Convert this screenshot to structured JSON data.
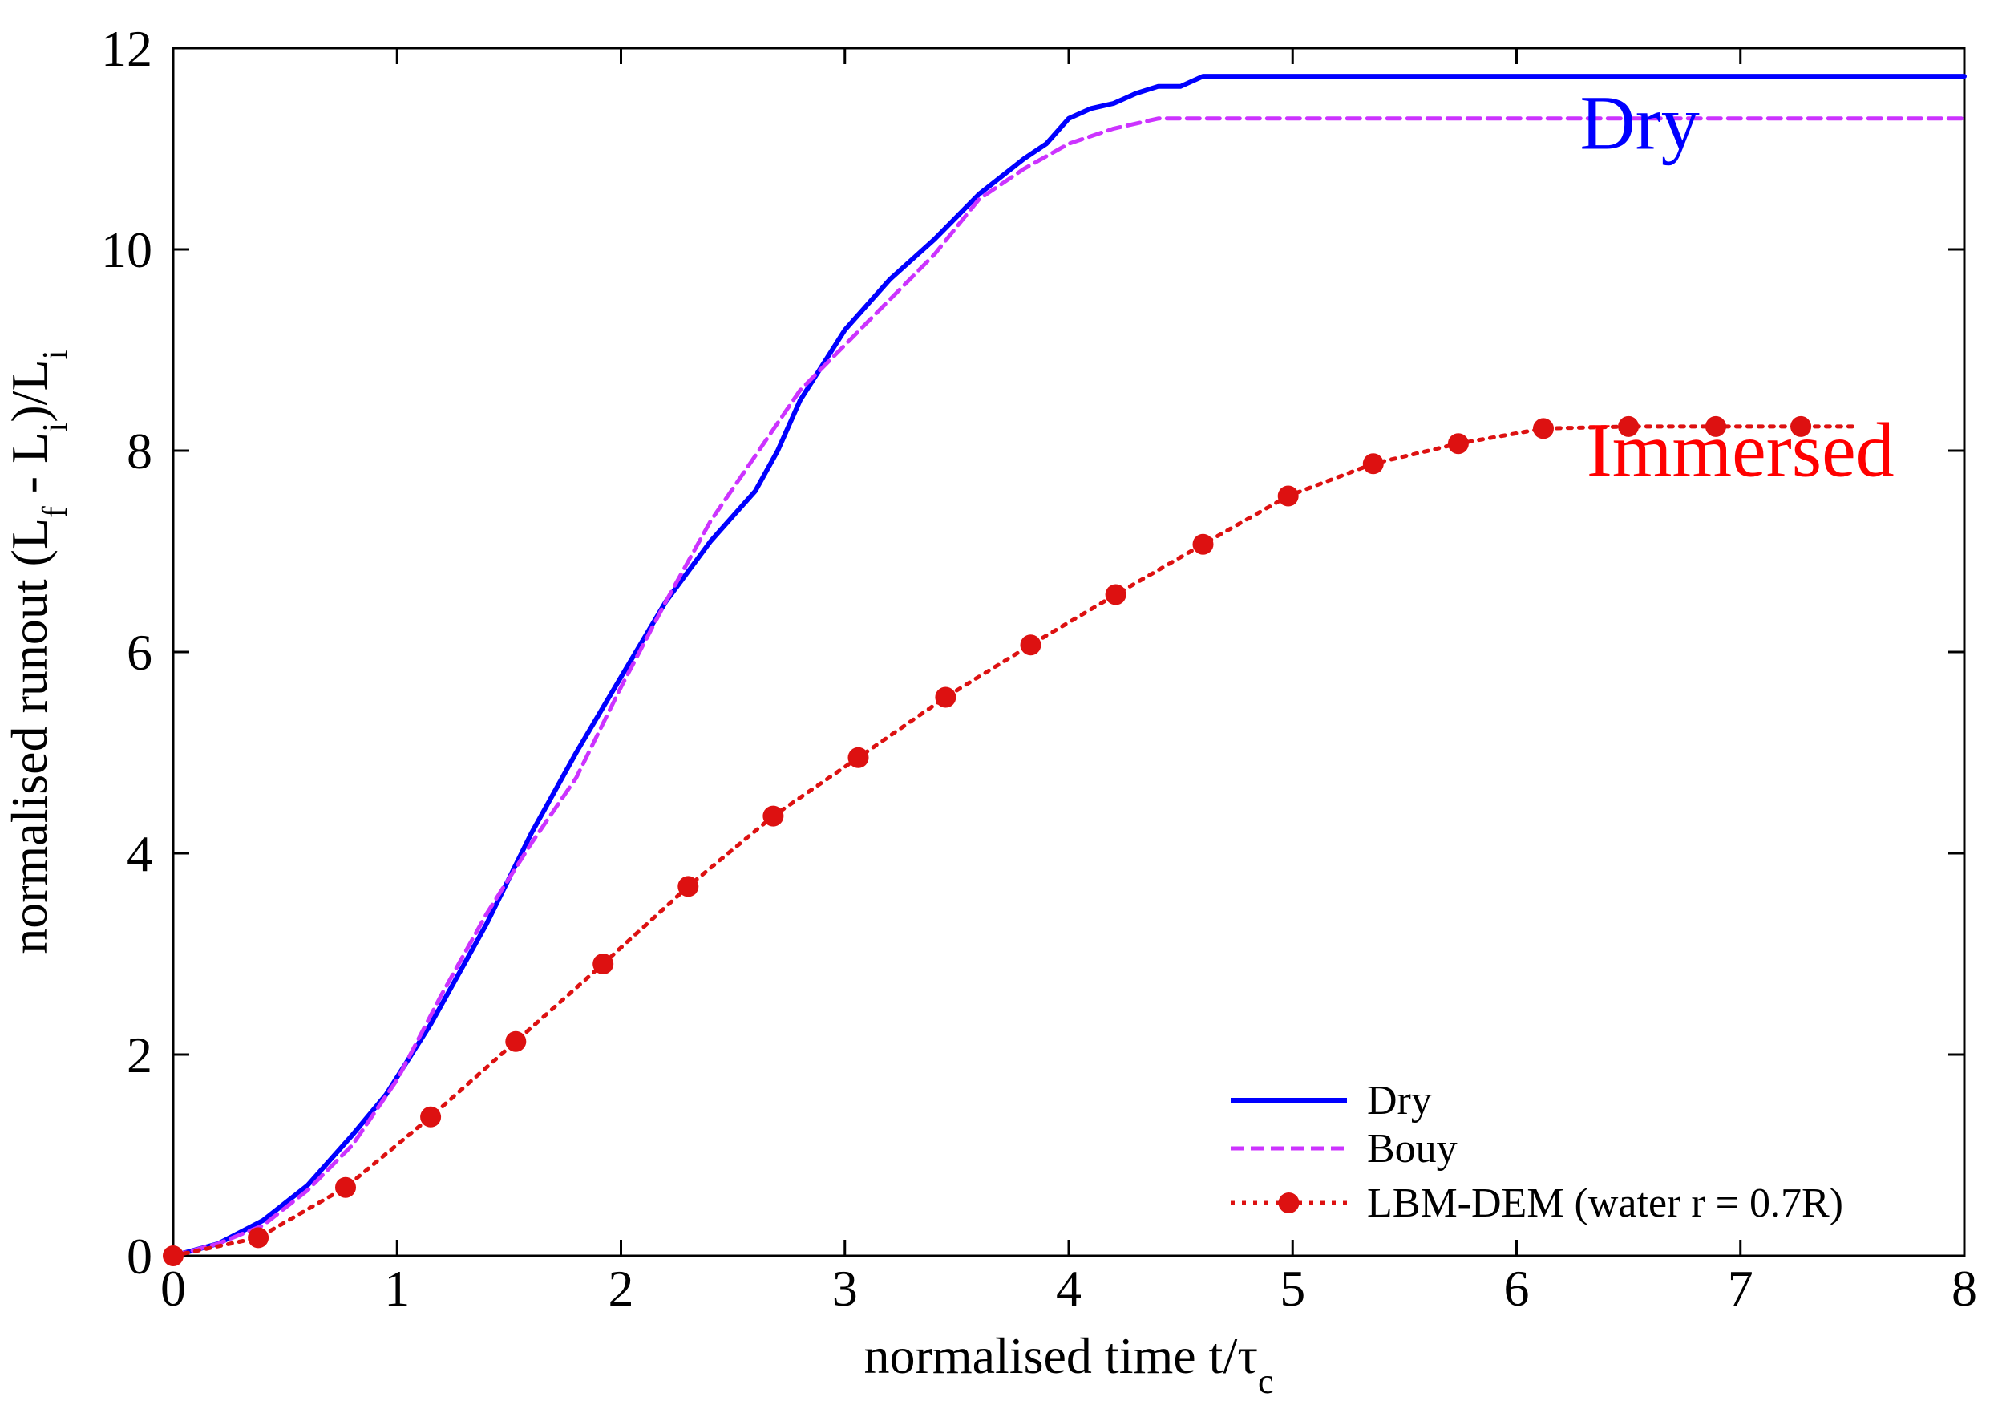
{
  "chart_data": {
    "type": "line",
    "xlabel": "normalised time t/τ",
    "xlabel_sub": "c",
    "ylabel_parts": [
      {
        "t": "normalised runout (L"
      },
      {
        "t": "f",
        "sub": true
      },
      {
        "t": " - L"
      },
      {
        "t": "i",
        "sub": true
      },
      {
        "t": ")/L"
      },
      {
        "t": "i",
        "sub": true
      }
    ],
    "xlim": [
      0,
      8
    ],
    "ylim": [
      0,
      12
    ],
    "x_ticks": [
      0,
      1,
      2,
      3,
      4,
      5,
      6,
      7,
      8
    ],
    "y_ticks": [
      0,
      2,
      4,
      6,
      8,
      10,
      12
    ],
    "grid": false,
    "legend_position": "bottom-right",
    "annotations": [
      {
        "text": "Dry",
        "color": "#0000ff",
        "x": 6.55,
        "y": 11.0
      },
      {
        "text": "Immersed",
        "color": "#ff0000",
        "x": 7.0,
        "y": 7.75
      }
    ],
    "series": [
      {
        "name": "Dry",
        "color": "#0000ff",
        "style": "solid",
        "x": [
          0,
          0.2,
          0.4,
          0.6,
          0.8,
          0.95,
          1.15,
          1.4,
          1.6,
          1.8,
          2.0,
          2.2,
          2.4,
          2.6,
          2.7,
          2.8,
          3.0,
          3.2,
          3.4,
          3.6,
          3.8,
          3.9,
          4.0,
          4.1,
          4.2,
          4.3,
          4.4,
          4.5,
          4.6,
          4.7,
          5.0,
          6.0,
          7.0,
          8.0
        ],
        "y": [
          0,
          0.12,
          0.35,
          0.7,
          1.2,
          1.6,
          2.3,
          3.3,
          4.2,
          5.0,
          5.75,
          6.5,
          7.1,
          7.6,
          8.0,
          8.5,
          9.2,
          9.7,
          10.1,
          10.55,
          10.9,
          11.05,
          11.3,
          11.4,
          11.45,
          11.55,
          11.62,
          11.62,
          11.72,
          11.72,
          11.72,
          11.72,
          11.72,
          11.72
        ]
      },
      {
        "name": "Bouy",
        "color": "#cc33ff",
        "style": "dashed",
        "x": [
          0,
          0.2,
          0.4,
          0.6,
          0.8,
          1.0,
          1.2,
          1.4,
          1.6,
          1.8,
          2.0,
          2.2,
          2.4,
          2.6,
          2.8,
          3.0,
          3.2,
          3.4,
          3.6,
          3.8,
          4.0,
          4.2,
          4.4,
          4.5,
          5.0,
          6.0,
          7.0,
          8.0
        ],
        "y": [
          0,
          0.12,
          0.3,
          0.65,
          1.1,
          1.75,
          2.6,
          3.4,
          4.1,
          4.75,
          5.65,
          6.5,
          7.3,
          7.95,
          8.6,
          9.05,
          9.5,
          9.95,
          10.5,
          10.8,
          11.05,
          11.2,
          11.3,
          11.3,
          11.3,
          11.3,
          11.3,
          11.3
        ]
      },
      {
        "name": "LBM-DEM (water r = 0.7R)",
        "color": "#dd1111",
        "style": "dotted",
        "markers": true,
        "x": [
          0,
          0.38,
          0.77,
          1.15,
          1.53,
          1.92,
          2.3,
          2.68,
          3.06,
          3.45,
          3.83,
          4.21,
          4.6,
          4.98,
          5.36,
          5.74,
          6.12,
          6.5,
          6.89,
          7.27,
          7.5
        ],
        "y": [
          0,
          0.18,
          0.68,
          1.38,
          2.13,
          2.9,
          3.67,
          4.37,
          4.95,
          5.55,
          6.07,
          6.57,
          7.07,
          7.55,
          7.87,
          8.07,
          8.22,
          8.24,
          8.24,
          8.24,
          8.24
        ],
        "marker_count": 20
      }
    ]
  }
}
